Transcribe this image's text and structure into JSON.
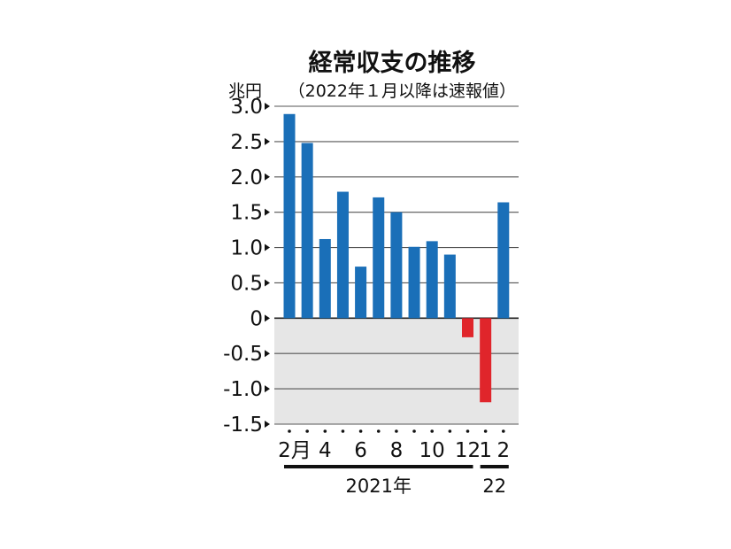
{
  "chart_data": {
    "type": "bar",
    "title": "経常収支の推移",
    "subtitle": "（2022年１月以降は速報値）",
    "ylabel": "兆円",
    "ylim": [
      -1.5,
      3.0
    ],
    "yticks": [
      "3.0",
      "2.5",
      "2.0",
      "1.5",
      "1.0",
      "0.5",
      "0",
      "-0.5",
      "-1.0",
      "-1.5"
    ],
    "ytick_values": [
      3.0,
      2.5,
      2.0,
      1.5,
      1.0,
      0.5,
      0,
      -0.5,
      -1.0,
      -1.5
    ],
    "categories": [
      "2021-02",
      "2021-03",
      "2021-04",
      "2021-05",
      "2021-06",
      "2021-07",
      "2021-08",
      "2021-09",
      "2021-10",
      "2021-11",
      "2021-12",
      "2022-01",
      "2022-02"
    ],
    "values": [
      2.89,
      2.48,
      1.12,
      1.79,
      0.73,
      1.71,
      1.5,
      1.01,
      1.09,
      0.9,
      -0.27,
      -1.19,
      1.64
    ],
    "xtick_labels": [
      {
        "index": 0,
        "text": "2月"
      },
      {
        "index": 2,
        "text": "4"
      },
      {
        "index": 4,
        "text": "6"
      },
      {
        "index": 6,
        "text": "8"
      },
      {
        "index": 8,
        "text": "10"
      },
      {
        "index": 10,
        "text": "12"
      },
      {
        "index": 11,
        "text": "1"
      },
      {
        "index": 12,
        "text": "2"
      }
    ],
    "year_groups": [
      {
        "label": "2021年",
        "start": 0,
        "end": 10
      },
      {
        "label": "22",
        "start": 11,
        "end": 12
      }
    ],
    "colors": {
      "positive": "#1a6fb8",
      "negative": "#e0252b",
      "negative_area": "#e6e6e6",
      "grid": "#555555"
    },
    "grid": true
  }
}
